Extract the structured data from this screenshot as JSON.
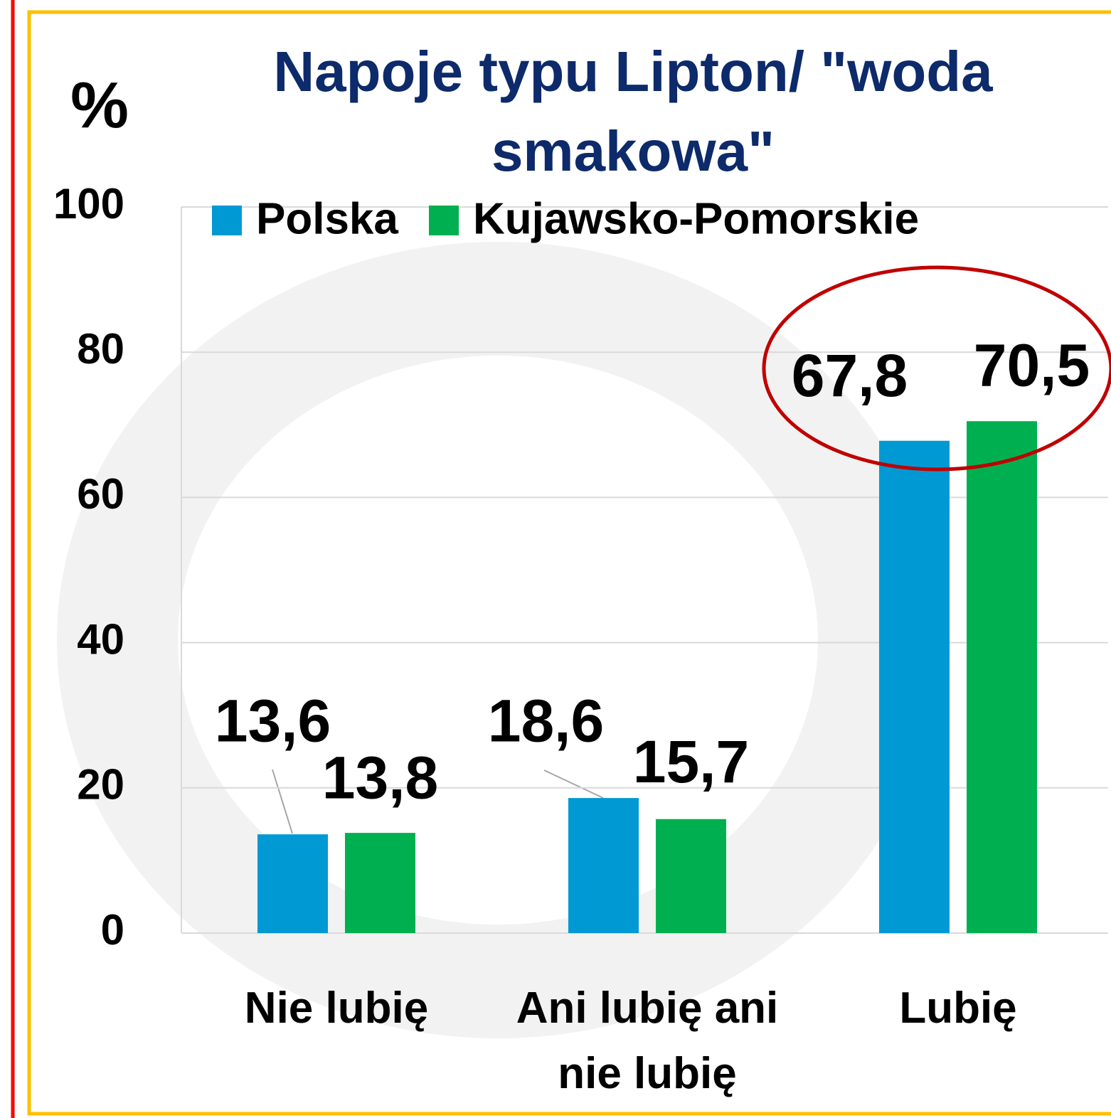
{
  "chart_data": {
    "type": "bar",
    "title": "Napoje typu Lipton/ \"woda smakowa\"",
    "ylabel": "%",
    "categories": [
      "Nie lubię",
      "Ani lubię ani nie lubię",
      "Lubię"
    ],
    "series": [
      {
        "name": "Polska",
        "color": "#0099d4",
        "values": [
          13.6,
          18.6,
          67.8
        ],
        "value_labels": [
          "13,6",
          "18,6",
          "67,8"
        ]
      },
      {
        "name": "Kujawsko-Pomorskie",
        "color": "#00b050",
        "values": [
          13.8,
          15.7,
          70.5
        ],
        "value_labels": [
          "13,8",
          "15,7",
          "70,5"
        ]
      }
    ],
    "ylim": [
      0,
      100
    ],
    "yticks": [
      0,
      20,
      40,
      60,
      80,
      100
    ],
    "grid": true,
    "legend": "top"
  }
}
